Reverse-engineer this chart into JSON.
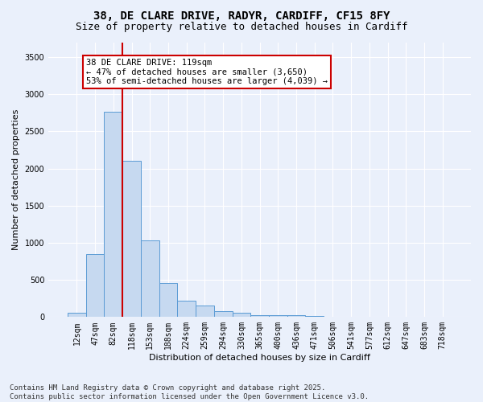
{
  "title_line1": "38, DE CLARE DRIVE, RADYR, CARDIFF, CF15 8FY",
  "title_line2": "Size of property relative to detached houses in Cardiff",
  "xlabel": "Distribution of detached houses by size in Cardiff",
  "ylabel": "Number of detached properties",
  "bar_labels": [
    "12sqm",
    "47sqm",
    "82sqm",
    "118sqm",
    "153sqm",
    "188sqm",
    "224sqm",
    "259sqm",
    "294sqm",
    "330sqm",
    "365sqm",
    "400sqm",
    "436sqm",
    "471sqm",
    "506sqm",
    "541sqm",
    "577sqm",
    "612sqm",
    "647sqm",
    "683sqm",
    "718sqm"
  ],
  "bar_values": [
    55,
    850,
    2760,
    2100,
    1030,
    455,
    220,
    155,
    75,
    55,
    30,
    25,
    25,
    10,
    5,
    0,
    0,
    0,
    0,
    0,
    0
  ],
  "bar_color": "#c6d9f0",
  "bar_edge_color": "#5b9bd5",
  "background_color": "#eaf0fb",
  "grid_color": "#ffffff",
  "annotation_text": "38 DE CLARE DRIVE: 119sqm\n← 47% of detached houses are smaller (3,650)\n53% of semi-detached houses are larger (4,039) →",
  "annotation_box_color": "#ffffff",
  "annotation_box_edge": "#cc0000",
  "vline_color": "#cc0000",
  "ylim": [
    0,
    3700
  ],
  "yticks": [
    0,
    500,
    1000,
    1500,
    2000,
    2500,
    3000,
    3500
  ],
  "footnote": "Contains HM Land Registry data © Crown copyright and database right 2025.\nContains public sector information licensed under the Open Government Licence v3.0.",
  "title_fontsize": 10,
  "subtitle_fontsize": 9,
  "axis_label_fontsize": 8,
  "tick_fontsize": 7,
  "annotation_fontsize": 7.5,
  "footnote_fontsize": 6.5
}
